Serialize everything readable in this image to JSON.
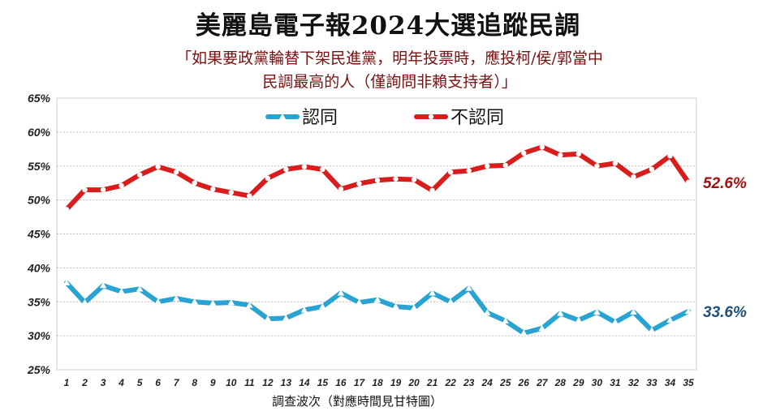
{
  "title": "美麗島電子報2024大選追蹤民調",
  "subtitle_line1": "「如果要政黨輪替下架民進黨，明年投票時，應投柯/侯/郭當中",
  "subtitle_line2": "民調最高的人（僅詢問非賴支持者）」",
  "chart_data": {
    "type": "line",
    "title": "美麗島電子報2024大選追蹤民調",
    "xlabel": "調查波次（對應時間見甘特圖）",
    "ylabel": "",
    "ylim": [
      25,
      65
    ],
    "yticks": [
      "25%",
      "30%",
      "35%",
      "40%",
      "45%",
      "50%",
      "55%",
      "60%",
      "65%"
    ],
    "grid": true,
    "legend_position": "top-center",
    "x": [
      1,
      2,
      3,
      4,
      5,
      6,
      7,
      8,
      9,
      10,
      11,
      12,
      13,
      14,
      15,
      16,
      17,
      18,
      19,
      20,
      21,
      22,
      23,
      24,
      25,
      26,
      27,
      28,
      29,
      30,
      31,
      32,
      33,
      34,
      35
    ],
    "series": [
      {
        "name": "認同",
        "color": "#29a3d1",
        "marker": "triangle",
        "values": [
          37.8,
          34.9,
          37.4,
          36.5,
          36.9,
          35.0,
          35.5,
          35.0,
          34.8,
          34.9,
          34.5,
          32.5,
          32.6,
          33.8,
          34.3,
          36.3,
          34.9,
          35.3,
          34.3,
          34.1,
          36.3,
          35.0,
          37.0,
          33.4,
          32.2,
          30.4,
          31.1,
          33.3,
          32.3,
          33.5,
          32.0,
          33.5,
          30.8,
          32.3,
          33.6
        ],
        "end_label": "33.6%"
      },
      {
        "name": "不認同",
        "color": "#d91c1c",
        "marker": "circle",
        "values": [
          48.6,
          51.5,
          51.5,
          52.1,
          53.7,
          54.9,
          54.1,
          52.5,
          51.6,
          51.1,
          50.6,
          53.2,
          54.5,
          54.9,
          54.5,
          51.6,
          52.4,
          52.9,
          53.1,
          53.0,
          51.4,
          54.1,
          54.3,
          55.0,
          55.1,
          56.9,
          57.8,
          56.6,
          56.8,
          55.0,
          55.4,
          53.4,
          54.5,
          56.5,
          52.6
        ],
        "end_label": "52.6%"
      }
    ]
  }
}
